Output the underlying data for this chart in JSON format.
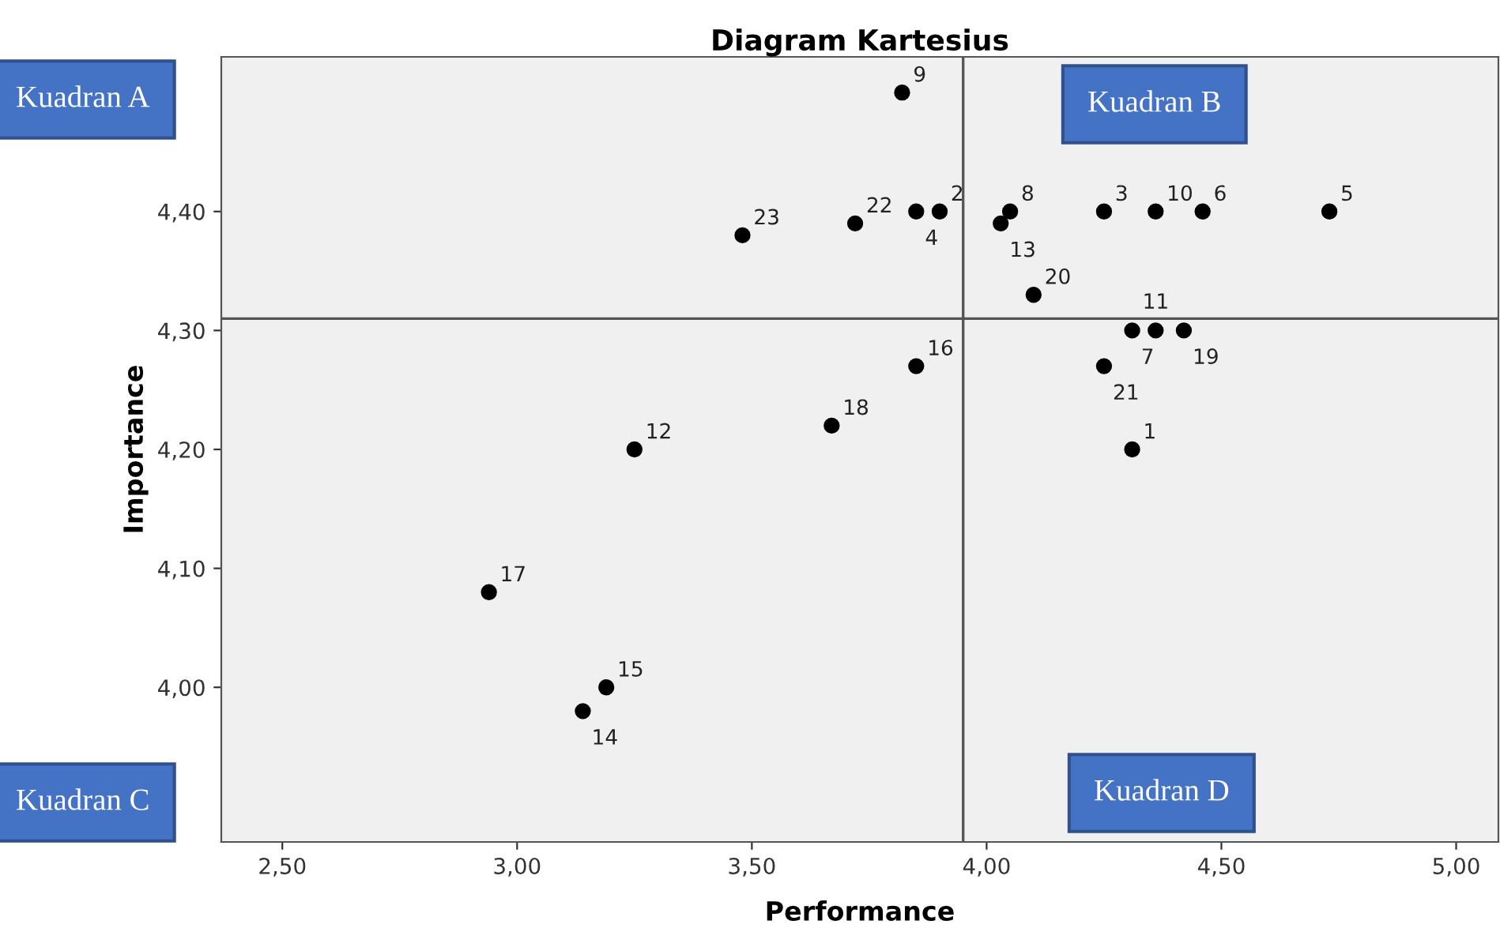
{
  "chart_data": {
    "type": "scatter",
    "title": "Diagram Kartesius",
    "xlabel": "Performance",
    "ylabel": "Importance",
    "x": [
      4.31,
      3.9,
      4.25,
      3.85,
      4.73,
      4.46,
      4.31,
      4.05,
      3.82,
      4.36,
      4.36,
      3.25,
      4.03,
      3.14,
      3.19,
      3.85,
      2.94,
      3.67,
      4.42,
      4.1,
      4.25,
      3.72,
      3.48
    ],
    "series": [
      {
        "color": "#000000",
        "values": [
          4.2,
          4.4,
          4.4,
          4.4,
          4.4,
          4.4,
          4.3,
          4.4,
          4.5,
          4.4,
          4.3,
          4.2,
          4.39,
          3.98,
          4.0,
          4.27,
          4.08,
          4.22,
          4.3,
          4.33,
          4.27,
          4.39,
          4.38
        ]
      }
    ],
    "marker": "circle",
    "grid": false,
    "legend": false,
    "xlim": [
      2.37,
      5.09
    ],
    "ylim": [
      3.87,
      4.53
    ],
    "xticks": [
      {
        "value": 2.5,
        "label": "2,50"
      },
      {
        "value": 3.0,
        "label": "3,00"
      },
      {
        "value": 3.5,
        "label": "3,50"
      },
      {
        "value": 4.0,
        "label": "4,00"
      },
      {
        "value": 4.5,
        "label": "4,50"
      },
      {
        "value": 5.0,
        "label": "5,00"
      }
    ],
    "yticks": [
      {
        "value": 4.0,
        "label": "4,00"
      },
      {
        "value": 4.1,
        "label": "4,10"
      },
      {
        "value": 4.2,
        "label": "4,20"
      },
      {
        "value": 4.3,
        "label": "4,30"
      },
      {
        "value": 4.4,
        "label": "4,40"
      }
    ],
    "ref_lines": [
      {
        "axis": "x",
        "value": 3.95,
        "color": "#555555"
      },
      {
        "axis": "y",
        "value": 4.31,
        "color": "#555555"
      }
    ],
    "annotations": [
      "Kuadran A",
      "Kuadran B",
      "Kuadran C",
      "Kuadran D",
      {
        "text": "1",
        "x": 4.31,
        "y": 4.2
      },
      {
        "text": "2",
        "x": 3.9,
        "y": 4.4
      },
      {
        "text": "3",
        "x": 4.25,
        "y": 4.4
      },
      {
        "text": "4",
        "x": 3.85,
        "y": 4.4
      },
      {
        "text": "5",
        "x": 4.73,
        "y": 4.4
      },
      {
        "text": "6",
        "x": 4.46,
        "y": 4.4
      },
      {
        "text": "7",
        "x": 4.31,
        "y": 4.3
      },
      {
        "text": "8",
        "x": 4.05,
        "y": 4.4
      },
      {
        "text": "9",
        "x": 3.82,
        "y": 4.5
      },
      {
        "text": "10",
        "x": 4.36,
        "y": 4.4
      },
      {
        "text": "11",
        "x": 4.36,
        "y": 4.3
      },
      {
        "text": "12",
        "x": 3.25,
        "y": 4.2
      },
      {
        "text": "13",
        "x": 4.03,
        "y": 4.39
      },
      {
        "text": "14",
        "x": 3.14,
        "y": 3.98
      },
      {
        "text": "15",
        "x": 3.19,
        "y": 4.0
      },
      {
        "text": "16",
        "x": 3.85,
        "y": 4.27
      },
      {
        "text": "17",
        "x": 2.94,
        "y": 4.08
      },
      {
        "text": "18",
        "x": 3.67,
        "y": 4.22
      },
      {
        "text": "19",
        "x": 4.42,
        "y": 4.3
      },
      {
        "text": "20",
        "x": 4.1,
        "y": 4.33
      },
      {
        "text": "21",
        "x": 4.25,
        "y": 4.27
      },
      {
        "text": "22",
        "x": 3.72,
        "y": 4.39
      },
      {
        "text": "23",
        "x": 3.48,
        "y": 4.38
      }
    ]
  }
}
